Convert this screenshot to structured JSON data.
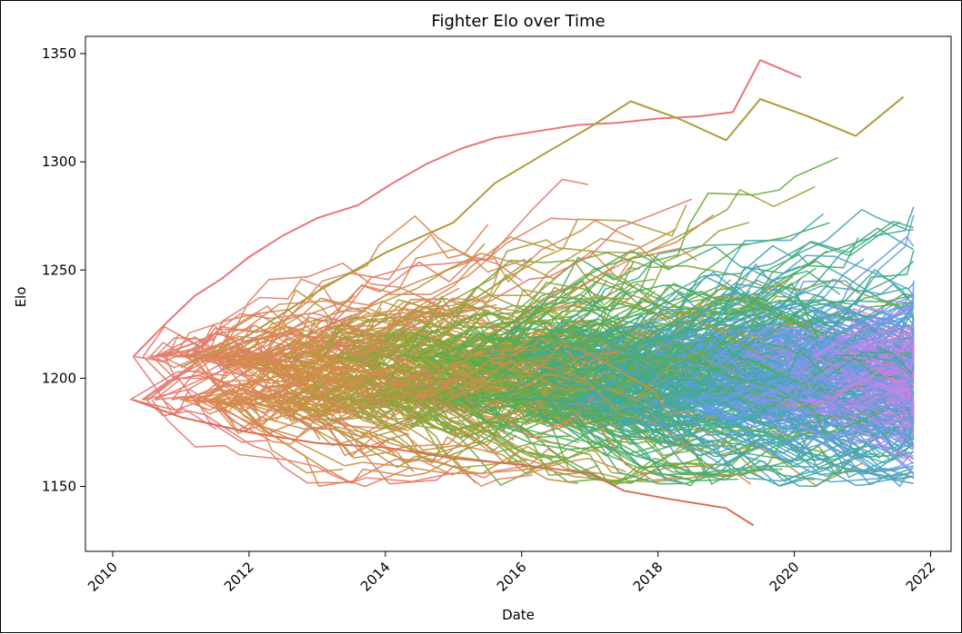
{
  "chart_data": {
    "type": "line",
    "title": "Fighter Elo over Time",
    "xlabel": "Date",
    "ylabel": "Elo",
    "xlim": [
      2009.6,
      2022.3
    ],
    "ylim": [
      1120,
      1358
    ],
    "x_ticks": [
      "2010",
      "2012",
      "2014",
      "2016",
      "2018",
      "2020",
      "2022"
    ],
    "y_ticks": [
      "1150",
      "1200",
      "1250",
      "1300",
      "1350"
    ],
    "grid": false,
    "legend": "none",
    "palette": "husl hue gradient by fighter start date",
    "colors": [
      "#e8767b",
      "#d68a48",
      "#b39a3c",
      "#8aa53d",
      "#55ae47",
      "#3eab87",
      "#46a6b5",
      "#56a0e0",
      "#8e94ea",
      "#c584ea",
      "#e674d4"
    ],
    "highlighted_series": [
      {
        "name": "",
        "color": "#e8767b",
        "x": [
          2010.3,
          2010.8,
          2011.2,
          2011.6,
          2012.0,
          2012.5,
          2013.0,
          2013.6,
          2014.1,
          2014.6,
          2015.1,
          2015.6,
          2016.2,
          2016.8,
          2017.4,
          2018.0,
          2018.6,
          2019.1,
          2019.5,
          2020.1
        ],
        "y": [
          1210,
          1226,
          1238,
          1246,
          1256,
          1266,
          1274,
          1280,
          1290,
          1299,
          1306,
          1311,
          1314,
          1317,
          1318,
          1320,
          1321,
          1323,
          1347,
          1339
        ]
      },
      {
        "name": "",
        "color": "#d96f55",
        "x": [
          2010.3,
          2011.0,
          2012.0,
          2013.0,
          2014.0,
          2015.0,
          2016.0,
          2017.0,
          2017.5,
          2018.2,
          2019.0,
          2019.4
        ],
        "y": [
          1190,
          1182,
          1175,
          1170,
          1168,
          1163,
          1160,
          1156,
          1148,
          1144,
          1140,
          1132
        ]
      },
      {
        "name": "",
        "color": "#b39a3c",
        "x": [
          2011.0,
          2012.0,
          2013.0,
          2014.0,
          2015.0,
          2015.6,
          2016.4,
          2017.0,
          2017.6,
          2018.3,
          2019.0,
          2019.5,
          2020.2,
          2020.9,
          2021.6
        ],
        "y": [
          1205,
          1220,
          1240,
          1258,
          1272,
          1290,
          1305,
          1316,
          1328,
          1320,
          1310,
          1329,
          1321,
          1312,
          1330
        ]
      }
    ]
  }
}
